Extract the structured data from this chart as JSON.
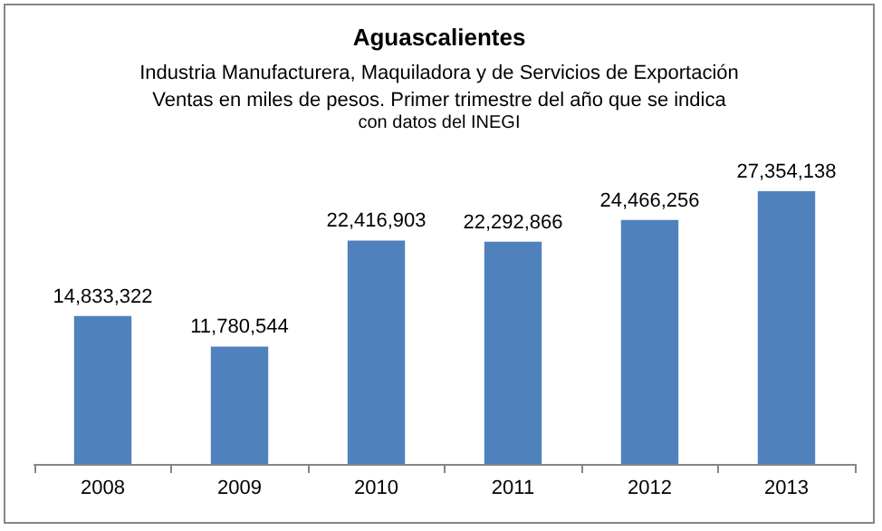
{
  "chart_data": {
    "type": "bar",
    "title": "Aguascalientes",
    "subtitle": "Industria Manufacturera, Maquiladora y de Servicios de Exportación\nVentas en miles de pesos. Primer trimestre del año que se indica",
    "annotations": [
      "con datos del INEGI"
    ],
    "categories": [
      "2008",
      "2009",
      "2010",
      "2011",
      "2012",
      "2013"
    ],
    "values": [
      14833322,
      11780544,
      22416903,
      22292866,
      24466256,
      27354138
    ],
    "value_labels": [
      "14,833,322",
      "11,780,544",
      "22,416,903",
      "22,292,866",
      "24,466,256",
      "27,354,138"
    ],
    "color": "#4f81bd"
  }
}
